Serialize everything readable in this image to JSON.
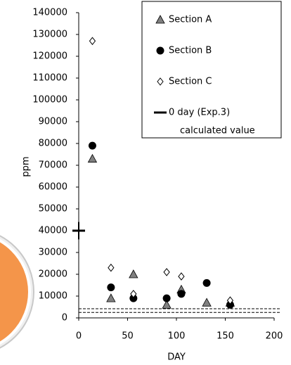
{
  "chart_data": {
    "type": "scatter",
    "xlabel": "DAY",
    "ylabel": "ppm",
    "xlim": [
      0,
      200
    ],
    "xticks": [
      0,
      50,
      100,
      150,
      200
    ],
    "ylim": [
      0,
      140000
    ],
    "yticks": [
      0,
      10000,
      20000,
      30000,
      40000,
      50000,
      60000,
      70000,
      80000,
      90000,
      100000,
      110000,
      120000,
      130000,
      140000
    ],
    "reference_lines": [
      2500,
      4200
    ],
    "legend_position": "upper right",
    "legend_note": "calculated value",
    "series": [
      {
        "name": "Section A",
        "marker": "triangle",
        "color": "#808080",
        "x": [
          14,
          33,
          56,
          90,
          105,
          131,
          155
        ],
        "values": [
          73000,
          9000,
          20000,
          6000,
          13000,
          7000,
          7000
        ]
      },
      {
        "name": "Section B",
        "marker": "circle",
        "color": "#000000",
        "x": [
          14,
          33,
          56,
          90,
          105,
          131,
          155
        ],
        "values": [
          79000,
          14000,
          9000,
          9000,
          11000,
          16000,
          6000
        ]
      },
      {
        "name": "Section C",
        "marker": "diamond",
        "color": "#ffffff",
        "x": [
          14,
          33,
          56,
          90,
          105,
          155
        ],
        "values": [
          127000,
          23000,
          11000,
          21000,
          19000,
          8000
        ]
      },
      {
        "name": "0 day (Exp.3)",
        "marker": "dash",
        "color": "#000000",
        "x": [
          0
        ],
        "values": [
          40000
        ],
        "errors": [
          4000
        ]
      }
    ]
  }
}
